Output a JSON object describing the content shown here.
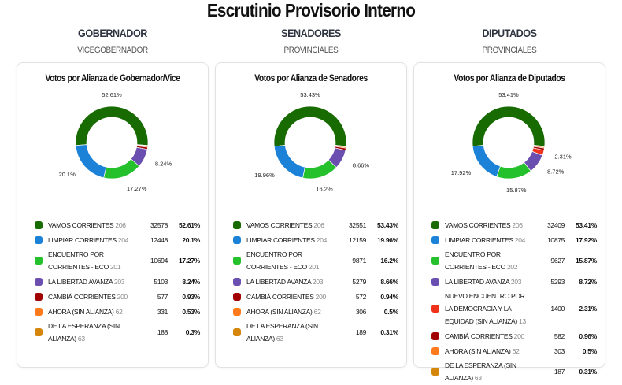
{
  "title": "Escrutinio Provisorio Interno",
  "columns": [
    {
      "heading": "GOBERNADOR",
      "subheading": "VICEGOBERNADOR",
      "card_title": "Votos por Alianza de Gobernador/Vice",
      "rows": [
        {
          "name": "VAMOS CORRIENTES",
          "num": "206",
          "votes": "32578",
          "pct": "52.61%",
          "value": 52.61,
          "color": "#176b00"
        },
        {
          "name": "LIMPIAR CORRIENTES",
          "num": "204",
          "votes": "12448",
          "pct": "20.1%",
          "value": 20.1,
          "color": "#1b82d8"
        },
        {
          "name": "ENCUENTRO POR CORRIENTES - ECO",
          "num": "201",
          "votes": "10694",
          "pct": "17.27%",
          "value": 17.27,
          "color": "#24c12c"
        },
        {
          "name": "LA LIBERTAD AVANZA",
          "num": "203",
          "votes": "5103",
          "pct": "8.24%",
          "value": 8.24,
          "color": "#6b4fb0"
        },
        {
          "name": "CAMBIÁ CORRIENTES",
          "num": "200",
          "votes": "577",
          "pct": "0.93%",
          "value": 0.93,
          "color": "#a00000"
        },
        {
          "name": "AHORA (SIN ALIANZA)",
          "num": "62",
          "votes": "331",
          "pct": "0.53%",
          "value": 0.53,
          "color": "#ff7a1a"
        },
        {
          "name": "DE LA ESPERANZA (SIN ALIANZA)",
          "num": "63",
          "votes": "188",
          "pct": "0.3%",
          "value": 0.3,
          "color": "#d4870c"
        }
      ]
    },
    {
      "heading": "SENADORES",
      "subheading": "PROVINCIALES",
      "card_title": "Votos por Alianza de Senadores",
      "rows": [
        {
          "name": "VAMOS CORRIENTES",
          "num": "206",
          "votes": "32551",
          "pct": "53.43%",
          "value": 53.43,
          "color": "#176b00"
        },
        {
          "name": "LIMPIAR CORRIENTES",
          "num": "204",
          "votes": "12159",
          "pct": "19.96%",
          "value": 19.96,
          "color": "#1b82d8"
        },
        {
          "name": "ENCUENTRO POR CORRIENTES - ECO",
          "num": "201",
          "votes": "9871",
          "pct": "16.2%",
          "value": 16.2,
          "color": "#24c12c"
        },
        {
          "name": "LA LIBERTAD AVANZA",
          "num": "203",
          "votes": "5279",
          "pct": "8.66%",
          "value": 8.66,
          "color": "#6b4fb0"
        },
        {
          "name": "CAMBIÁ CORRIENTES",
          "num": "200",
          "votes": "572",
          "pct": "0.94%",
          "value": 0.94,
          "color": "#a00000"
        },
        {
          "name": "AHORA (SIN ALIANZA)",
          "num": "62",
          "votes": "306",
          "pct": "0.5%",
          "value": 0.5,
          "color": "#ff7a1a"
        },
        {
          "name": "DE LA ESPERANZA (SIN ALIANZA)",
          "num": "63",
          "votes": "189",
          "pct": "0.31%",
          "value": 0.31,
          "color": "#d4870c"
        }
      ]
    },
    {
      "heading": "DIPUTADOS",
      "subheading": "PROVINCIALES",
      "card_title": "Votos por Alianza de Diputados",
      "rows": [
        {
          "name": "VAMOS CORRIENTES",
          "num": "206",
          "votes": "32409",
          "pct": "53.41%",
          "value": 53.41,
          "color": "#176b00"
        },
        {
          "name": "LIMPIAR CORRIENTES",
          "num": "204",
          "votes": "10875",
          "pct": "17.92%",
          "value": 17.92,
          "color": "#1b82d8"
        },
        {
          "name": "ENCUENTRO POR CORRIENTES - ECO",
          "num": "202",
          "votes": "9627",
          "pct": "15.87%",
          "value": 15.87,
          "color": "#24c12c"
        },
        {
          "name": "LA LIBERTAD AVANZA",
          "num": "203",
          "votes": "5293",
          "pct": "8.72%",
          "value": 8.72,
          "color": "#6b4fb0"
        },
        {
          "name": "NUEVO ENCUENTRO POR LA DEMOCRACIA Y LA EQUIDAD (SIN ALIANZA)",
          "num": "13",
          "votes": "1400",
          "pct": "2.31%",
          "value": 2.31,
          "color": "#f0321a"
        },
        {
          "name": "CAMBIÁ CORRIENTES",
          "num": "200",
          "votes": "582",
          "pct": "0.96%",
          "value": 0.96,
          "color": "#a00000"
        },
        {
          "name": "AHORA (SIN ALIANZA)",
          "num": "62",
          "votes": "303",
          "pct": "0.5%",
          "value": 0.5,
          "color": "#ff7a1a"
        },
        {
          "name": "DE LA ESPERANZA (SIN ALIANZA)",
          "num": "63",
          "votes": "187",
          "pct": "0.31%",
          "value": 0.31,
          "color": "#d4870c"
        }
      ]
    }
  ]
}
